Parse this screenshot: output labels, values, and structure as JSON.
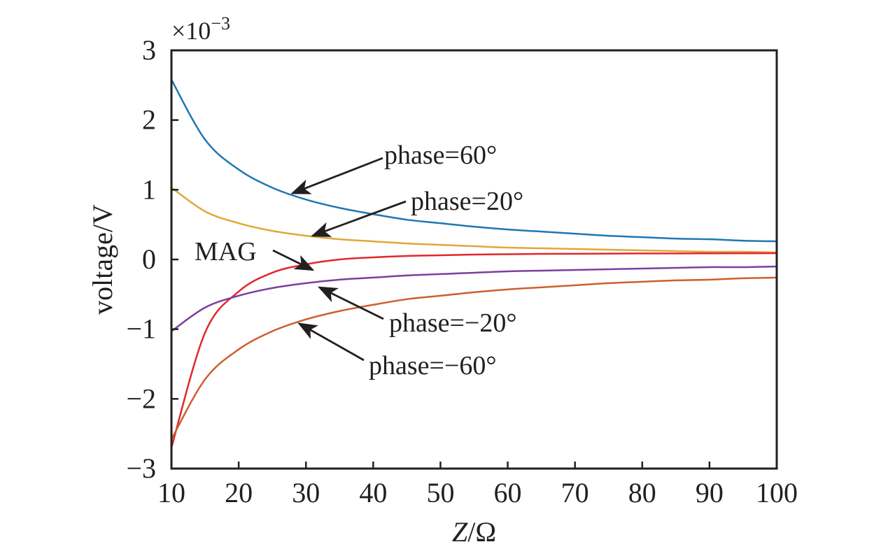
{
  "chart_data": {
    "type": "line",
    "xlabel_italic": "Z",
    "xlabel_rest": "/Ω",
    "ylabel": "voltage/V",
    "y_multiplier_base": "×10",
    "y_multiplier_exp": "−3",
    "xlim": [
      10,
      100
    ],
    "ylim": [
      -3,
      3
    ],
    "x_ticks": [
      10,
      20,
      30,
      40,
      50,
      60,
      70,
      80,
      90,
      100
    ],
    "x_tick_labels": [
      "10",
      "20",
      "30",
      "40",
      "50",
      "60",
      "70",
      "80",
      "90",
      "100"
    ],
    "y_ticks": [
      -3,
      -2,
      -1,
      0,
      1,
      2,
      3
    ],
    "y_tick_labels": [
      "−3",
      "−2",
      "−1",
      "0",
      "1",
      "2",
      "3"
    ],
    "grid": false,
    "x": [
      10,
      15,
      20,
      25,
      30,
      35,
      40,
      45,
      50,
      55,
      60,
      65,
      70,
      75,
      80,
      85,
      90,
      95,
      100
    ],
    "series": [
      {
        "name": "phase=60°",
        "color": "#1f77b4",
        "values": [
          2.58,
          1.72,
          1.29,
          1.03,
          0.86,
          0.74,
          0.65,
          0.57,
          0.52,
          0.47,
          0.43,
          0.4,
          0.37,
          0.34,
          0.32,
          0.3,
          0.29,
          0.27,
          0.26
        ]
      },
      {
        "name": "phase=20°",
        "color": "#e0a83a",
        "values": [
          1.03,
          0.69,
          0.52,
          0.41,
          0.34,
          0.29,
          0.26,
          0.23,
          0.21,
          0.19,
          0.17,
          0.16,
          0.15,
          0.14,
          0.13,
          0.12,
          0.11,
          0.11,
          0.1
        ]
      },
      {
        "name": "MAG",
        "color": "#e0282c",
        "values": [
          -2.7,
          -1.05,
          -0.46,
          -0.19,
          -0.07,
          0.0,
          0.03,
          0.05,
          0.06,
          0.07,
          0.075,
          0.08,
          0.082,
          0.084,
          0.086,
          0.087,
          0.088,
          0.089,
          0.09
        ]
      },
      {
        "name": "phase=−20°",
        "color": "#7b3fa0",
        "values": [
          -1.03,
          -0.69,
          -0.52,
          -0.41,
          -0.34,
          -0.29,
          -0.26,
          -0.23,
          -0.21,
          -0.19,
          -0.17,
          -0.16,
          -0.15,
          -0.14,
          -0.13,
          -0.12,
          -0.11,
          -0.11,
          -0.1
        ]
      },
      {
        "name": "phase=−60°",
        "color": "#cd5f2e",
        "values": [
          -2.58,
          -1.72,
          -1.29,
          -1.03,
          -0.86,
          -0.74,
          -0.65,
          -0.57,
          -0.52,
          -0.47,
          -0.43,
          -0.4,
          -0.37,
          -0.34,
          -0.32,
          -0.3,
          -0.29,
          -0.27,
          -0.26
        ]
      }
    ],
    "annotations": [
      {
        "text": "phase=60°",
        "target_series": "phase=60°",
        "target_x": 28,
        "target_y": 0.95
      },
      {
        "text": "phase=20°",
        "target_series": "phase=20°",
        "target_x": 31,
        "target_y": 0.34
      },
      {
        "text": "MAG",
        "target_series": "MAG",
        "target_x": 31,
        "target_y": -0.15
      },
      {
        "text": "phase=−20°",
        "target_series": "phase=−20°",
        "target_x": 32,
        "target_y": -0.4
      },
      {
        "text": "phase=−60°",
        "target_series": "phase=−60°",
        "target_x": 29,
        "target_y": -0.92
      }
    ]
  }
}
